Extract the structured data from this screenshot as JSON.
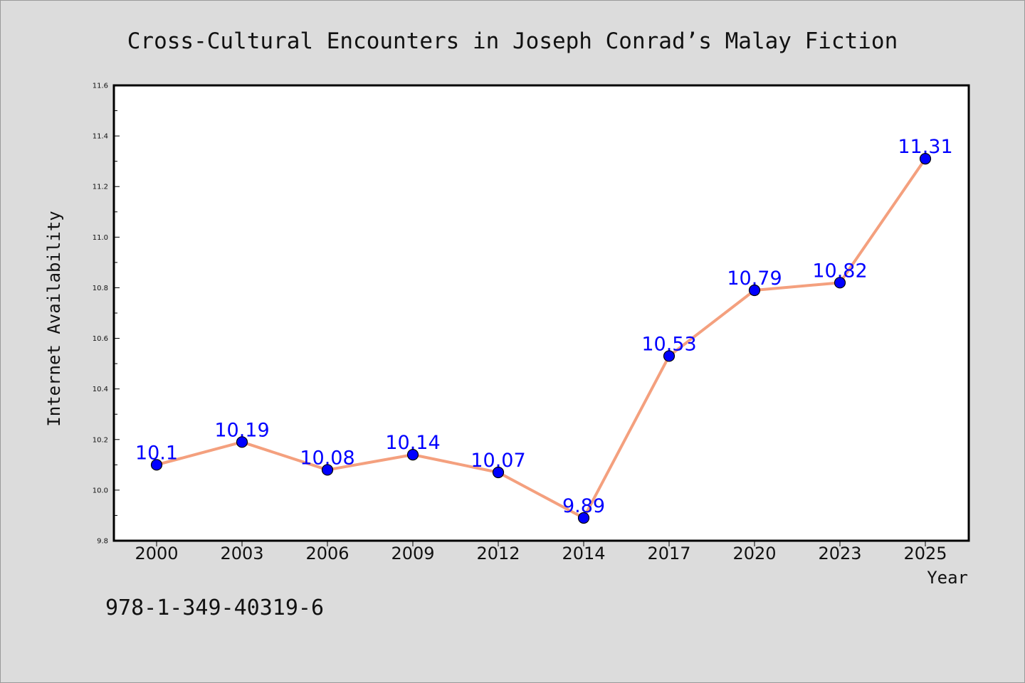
{
  "chart_data": {
    "type": "line",
    "title": "Cross-Cultural Encounters in Joseph Conrad’s Malay Fiction",
    "xlabel": "Year",
    "ylabel": "Internet Availability",
    "categories": [
      "2000",
      "2003",
      "2006",
      "2009",
      "2012",
      "2014",
      "2017",
      "2020",
      "2023",
      "2025"
    ],
    "series": [
      {
        "values": [
          10.1,
          10.19,
          10.08,
          10.14,
          10.07,
          9.89,
          10.53,
          10.79,
          10.82,
          11.31
        ],
        "labels": [
          "10.1",
          "10.19",
          "10.08",
          "10.14",
          "10.07",
          "9.89",
          "10.53",
          "10.79",
          "10.82",
          "11.31"
        ],
        "line_color": "#f4a07e",
        "marker_color": "#0000ff"
      }
    ],
    "ylim": [
      9.8,
      11.6
    ],
    "yticks": [
      "9.8",
      "10.0",
      "10.2",
      "10.4",
      "10.6",
      "10.8",
      "11.0",
      "11.2",
      "11.4",
      "11.6"
    ],
    "grid": false,
    "legend": "none"
  },
  "footer": {
    "isbn": "978-1-349-40319-6"
  }
}
